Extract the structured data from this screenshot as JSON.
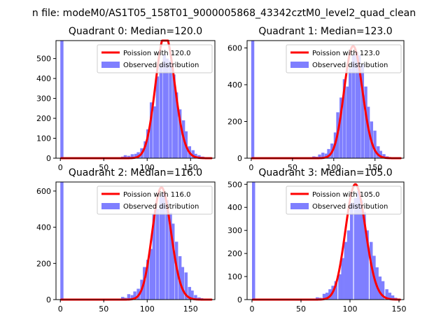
{
  "figure_title": "n file: modeM0/AS1T05_158T01_9000005868_43342cztM0_level2_quad_clean",
  "colors": {
    "hist": "#7f7fff",
    "fit": "#ff0000",
    "axes": "#000000",
    "legend_edge": "#cccccc"
  },
  "chart_data": [
    {
      "type": "bar",
      "title": "Quadrant 0: Median=120.0",
      "xlim": [
        -5,
        178
      ],
      "ylim": [
        0,
        590
      ],
      "xticks": [
        0,
        50,
        100,
        150
      ],
      "yticks": [
        0,
        100,
        200,
        300,
        400,
        500
      ],
      "legend": {
        "position": "top-right",
        "fit_label": "Poission with 120.0",
        "hist_label": "Observed distribution"
      },
      "median": 120.0,
      "fit_peak": 620,
      "histogram": {
        "bin_width": 3.6,
        "spike": {
          "x": 0,
          "count": 590
        },
        "bins": [
          [
            2,
            3
          ],
          [
            6,
            3
          ],
          [
            10,
            3
          ],
          [
            14,
            3
          ],
          [
            18,
            3
          ],
          [
            22,
            3
          ],
          [
            26,
            3
          ],
          [
            30,
            3
          ],
          [
            34,
            3
          ],
          [
            38,
            3
          ],
          [
            42,
            3
          ],
          [
            46,
            3
          ],
          [
            50,
            3
          ],
          [
            54,
            3
          ],
          [
            58,
            3
          ],
          [
            62,
            3
          ],
          [
            66,
            3
          ],
          [
            70,
            8
          ],
          [
            73,
            15
          ],
          [
            77,
            12
          ],
          [
            81,
            20
          ],
          [
            85,
            22
          ],
          [
            88,
            30
          ],
          [
            92,
            50
          ],
          [
            96,
            85
          ],
          [
            99,
            145
          ],
          [
            103,
            280
          ],
          [
            107,
            260
          ],
          [
            110,
            410
          ],
          [
            114,
            470
          ],
          [
            118,
            520
          ],
          [
            121,
            500
          ],
          [
            125,
            490
          ],
          [
            129,
            420
          ],
          [
            132,
            330
          ],
          [
            136,
            245
          ],
          [
            140,
            190
          ],
          [
            143,
            135
          ],
          [
            147,
            60
          ],
          [
            151,
            40
          ],
          [
            154,
            22
          ],
          [
            158,
            15
          ],
          [
            162,
            8
          ],
          [
            165,
            5
          ],
          [
            169,
            3
          ]
        ]
      }
    },
    {
      "type": "bar",
      "title": "Quadrant 1: Median=123.0",
      "xlim": [
        -5,
        185
      ],
      "ylim": [
        0,
        640
      ],
      "xticks": [
        0,
        50,
        100,
        150
      ],
      "yticks": [
        0,
        200,
        400,
        600
      ],
      "legend": {
        "position": "top-right",
        "fit_label": "Poission with 123.0",
        "hist_label": "Observed distribution"
      },
      "median": 123.0,
      "fit_peak": 610,
      "histogram": {
        "bin_width": 3.7,
        "spike": {
          "x": 0,
          "count": 640
        },
        "bins": [
          [
            2,
            3
          ],
          [
            6,
            3
          ],
          [
            10,
            3
          ],
          [
            14,
            3
          ],
          [
            18,
            3
          ],
          [
            22,
            3
          ],
          [
            26,
            3
          ],
          [
            30,
            3
          ],
          [
            34,
            3
          ],
          [
            38,
            3
          ],
          [
            42,
            3
          ],
          [
            46,
            3
          ],
          [
            50,
            3
          ],
          [
            54,
            3
          ],
          [
            58,
            3
          ],
          [
            62,
            3
          ],
          [
            66,
            3
          ],
          [
            70,
            3
          ],
          [
            74,
            10
          ],
          [
            77,
            8
          ],
          [
            81,
            20
          ],
          [
            85,
            30
          ],
          [
            89,
            25
          ],
          [
            92,
            50
          ],
          [
            96,
            80
          ],
          [
            100,
            140
          ],
          [
            103,
            250
          ],
          [
            107,
            330
          ],
          [
            111,
            430
          ],
          [
            115,
            390
          ],
          [
            118,
            490
          ],
          [
            122,
            560
          ],
          [
            126,
            580
          ],
          [
            129,
            560
          ],
          [
            133,
            510
          ],
          [
            137,
            390
          ],
          [
            140,
            280
          ],
          [
            144,
            200
          ],
          [
            148,
            150
          ],
          [
            152,
            65
          ],
          [
            155,
            40
          ],
          [
            159,
            22
          ],
          [
            163,
            10
          ],
          [
            166,
            6
          ],
          [
            170,
            3
          ]
        ]
      }
    },
    {
      "type": "bar",
      "title": "Quadrant 2: Median=116.0",
      "xlim": [
        -5,
        178
      ],
      "ylim": [
        0,
        650
      ],
      "xticks": [
        0,
        50,
        100,
        150
      ],
      "yticks": [
        0,
        200,
        400,
        600
      ],
      "legend": {
        "position": "top-right",
        "fit_label": "Poission with 116.0",
        "hist_label": "Observed distribution"
      },
      "median": 116.0,
      "fit_peak": 620,
      "histogram": {
        "bin_width": 3.6,
        "spike": {
          "x": 0,
          "count": 650
        },
        "bins": [
          [
            2,
            3
          ],
          [
            6,
            3
          ],
          [
            10,
            3
          ],
          [
            14,
            3
          ],
          [
            18,
            3
          ],
          [
            22,
            3
          ],
          [
            26,
            3
          ],
          [
            30,
            3
          ],
          [
            34,
            3
          ],
          [
            38,
            3
          ],
          [
            42,
            3
          ],
          [
            46,
            3
          ],
          [
            50,
            3
          ],
          [
            54,
            3
          ],
          [
            58,
            3
          ],
          [
            62,
            3
          ],
          [
            66,
            3
          ],
          [
            70,
            15
          ],
          [
            73,
            10
          ],
          [
            77,
            30
          ],
          [
            81,
            25
          ],
          [
            84,
            45
          ],
          [
            88,
            60
          ],
          [
            92,
            110
          ],
          [
            95,
            180
          ],
          [
            99,
            220
          ],
          [
            103,
            280
          ],
          [
            106,
            470
          ],
          [
            110,
            500
          ],
          [
            114,
            570
          ],
          [
            117,
            590
          ],
          [
            121,
            550
          ],
          [
            125,
            480
          ],
          [
            128,
            420
          ],
          [
            132,
            320
          ],
          [
            136,
            240
          ],
          [
            139,
            180
          ],
          [
            143,
            150
          ],
          [
            147,
            70
          ],
          [
            150,
            50
          ],
          [
            154,
            25
          ],
          [
            158,
            12
          ],
          [
            161,
            8
          ],
          [
            165,
            4
          ],
          [
            169,
            3
          ]
        ]
      }
    },
    {
      "type": "bar",
      "title": "Quadrant 3: Median=105.0",
      "xlim": [
        -5,
        155
      ],
      "ylim": [
        0,
        510
      ],
      "xticks": [
        0,
        50,
        100,
        150
      ],
      "yticks": [
        0,
        100,
        200,
        300,
        400,
        500
      ],
      "legend": {
        "position": "top-right",
        "fit_label": "Poission with 105.0",
        "hist_label": "Observed distribution"
      },
      "median": 105.0,
      "fit_peak": 500,
      "histogram": {
        "bin_width": 3.2,
        "spike": {
          "x": 0,
          "count": 510
        },
        "bins": [
          [
            2,
            3
          ],
          [
            6,
            3
          ],
          [
            10,
            3
          ],
          [
            14,
            3
          ],
          [
            18,
            3
          ],
          [
            22,
            3
          ],
          [
            26,
            3
          ],
          [
            30,
            3
          ],
          [
            34,
            3
          ],
          [
            38,
            3
          ],
          [
            42,
            3
          ],
          [
            46,
            3
          ],
          [
            50,
            3
          ],
          [
            54,
            3
          ],
          [
            58,
            3
          ],
          [
            62,
            3
          ],
          [
            65,
            10
          ],
          [
            68,
            8
          ],
          [
            72,
            25
          ],
          [
            75,
            30
          ],
          [
            78,
            45
          ],
          [
            81,
            60
          ],
          [
            84,
            80
          ],
          [
            88,
            110
          ],
          [
            91,
            180
          ],
          [
            94,
            250
          ],
          [
            97,
            300
          ],
          [
            100,
            420
          ],
          [
            104,
            440
          ],
          [
            107,
            470
          ],
          [
            110,
            430
          ],
          [
            113,
            380
          ],
          [
            116,
            300
          ],
          [
            120,
            250
          ],
          [
            123,
            190
          ],
          [
            126,
            140
          ],
          [
            129,
            100
          ],
          [
            132,
            80
          ],
          [
            136,
            45
          ],
          [
            139,
            30
          ],
          [
            142,
            18
          ],
          [
            145,
            8
          ],
          [
            148,
            4
          ]
        ]
      }
    }
  ]
}
